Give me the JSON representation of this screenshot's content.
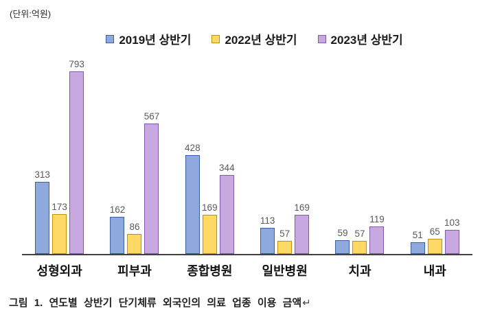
{
  "unit_label": "(단위:억원)",
  "legend": [
    {
      "label": "2019년 상반기",
      "color": "#8FA9DC",
      "border": "#3B5EA0"
    },
    {
      "label": "2022년 상반기",
      "color": "#FFD966",
      "border": "#BF9000"
    },
    {
      "label": "2023년 상반기",
      "color": "#C9A8E2",
      "border": "#7C5BA8"
    }
  ],
  "chart_data": {
    "type": "bar",
    "title": "",
    "unit": "억원",
    "categories": [
      "성형외과",
      "피부과",
      "종합병원",
      "일반병원",
      "치과",
      "내과"
    ],
    "series": [
      {
        "name": "2019년 상반기",
        "color": "#8FA9DC",
        "border_color": "#3B5EA0",
        "values": [
          313,
          162,
          428,
          113,
          59,
          51
        ]
      },
      {
        "name": "2022년 상반기",
        "color": "#FFD966",
        "border_color": "#BF9000",
        "values": [
          173,
          86,
          169,
          57,
          57,
          65
        ]
      },
      {
        "name": "2023년 상반기",
        "color": "#C9A8E2",
        "border_color": "#7C5BA8",
        "values": [
          793,
          567,
          344,
          169,
          119,
          103
        ]
      }
    ],
    "ylim": [
      0,
      800
    ],
    "grid": false,
    "value_labels": true,
    "legend_position": "top"
  },
  "caption": {
    "prefix": "그림 1.",
    "text": "연도별 상반기 단기체류 외국인의 의료 업종 이용 금액",
    "end_mark": "↵"
  },
  "colors": {
    "axis": "#404040",
    "value_label": "#595959",
    "category_label": "#111111"
  }
}
